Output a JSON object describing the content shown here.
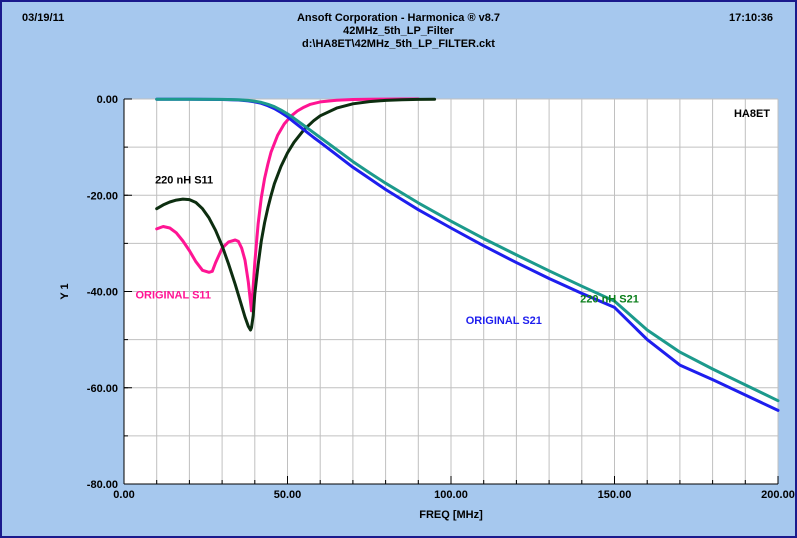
{
  "header": {
    "date": "03/19/11",
    "time": "17:10:36",
    "title_lines": [
      "Ansoft Corporation - Harmonica ® v8.7",
      "42MHz_5th_LP_Filter",
      "d:\\HA8ET\\42MHz_5th_LP_FILTER.ckt"
    ]
  },
  "colors": {
    "background": "#a6c8ee",
    "plot_area": "#ffffff",
    "grid": "#c0c0c0",
    "frame": "#1a1a8c"
  },
  "chart_data": {
    "type": "line",
    "xlabel": "FREQ [MHz]",
    "ylabel": "Y 1",
    "xlim": [
      0,
      200
    ],
    "ylim": [
      -80,
      0
    ],
    "xticks": [
      0,
      50,
      100,
      150,
      200
    ],
    "xtick_labels": [
      "0.00",
      "50.00",
      "100.00",
      "150.00",
      "200.00"
    ],
    "yticks": [
      0,
      -20,
      -40,
      -60,
      -80
    ],
    "ytick_labels": [
      "0.00",
      "-20.00",
      "-40.00",
      "-60.00",
      "-80.00"
    ],
    "grid": true,
    "plot_tag": "HA8ET",
    "series": [
      {
        "name": "ORIGINAL S11",
        "color": "#ff1493",
        "label_color": "#ff1493",
        "label_anchor": [
          3.5,
          -41.5
        ],
        "x": [
          10,
          12,
          14,
          16,
          18,
          20,
          22,
          24,
          26,
          27,
          28,
          30,
          32,
          34,
          35,
          36,
          37,
          38,
          39,
          40,
          41,
          42,
          43,
          44,
          45,
          47,
          49,
          51,
          53,
          55,
          57,
          60,
          65,
          70,
          75,
          80,
          85,
          90
        ],
        "y": [
          -27,
          -26.5,
          -26.8,
          -27.8,
          -29.5,
          -31.5,
          -33.8,
          -35.6,
          -36,
          -35.8,
          -34,
          -31,
          -29.7,
          -29.3,
          -29.6,
          -31,
          -33.5,
          -38,
          -44,
          -34,
          -26,
          -20.5,
          -16.5,
          -13.5,
          -11,
          -7.5,
          -5.2,
          -3.6,
          -2.5,
          -1.7,
          -1.1,
          -0.6,
          -0.25,
          -0.1,
          -0.05,
          -0.02,
          -0.01,
          0
        ]
      },
      {
        "name": "220 nH S11",
        "color": "#0d2e10",
        "label_color": "#000000",
        "label_anchor": [
          9.5,
          -17.6
        ],
        "x": [
          10,
          12,
          14,
          16,
          18,
          20,
          22,
          24,
          26,
          28,
          30,
          32,
          34,
          36,
          37,
          38,
          38.7,
          39,
          39.5,
          40,
          41,
          42,
          43,
          44,
          45,
          46,
          48,
          50,
          52,
          55,
          58,
          60,
          65,
          70,
          75,
          80,
          85,
          90,
          95
        ],
        "y": [
          -22.8,
          -22,
          -21.4,
          -21,
          -20.8,
          -20.9,
          -21.5,
          -22.8,
          -24.7,
          -27.3,
          -30.5,
          -34.3,
          -38.5,
          -43,
          -45.3,
          -47.2,
          -48,
          -47.5,
          -45,
          -40.5,
          -34.5,
          -29.5,
          -25.7,
          -22.6,
          -20,
          -17.6,
          -14,
          -11.2,
          -9,
          -6.4,
          -4.5,
          -3.5,
          -1.9,
          -1,
          -0.55,
          -0.3,
          -0.15,
          -0.08,
          -0.04
        ]
      },
      {
        "name": "ORIGINAL S21",
        "color": "#1e1eee",
        "label_color": "#1e1eee",
        "label_anchor": [
          104.5,
          -46.8
        ],
        "x": [
          10,
          20,
          30,
          35,
          38,
          40,
          42,
          44,
          46,
          48,
          50,
          52,
          55,
          58,
          60,
          65,
          70,
          75,
          80,
          90,
          100,
          110,
          120,
          130,
          140,
          150,
          160,
          170,
          180,
          190,
          200
        ],
        "y": [
          -0.05,
          -0.05,
          -0.1,
          -0.2,
          -0.4,
          -0.6,
          -0.9,
          -1.4,
          -2,
          -2.8,
          -3.7,
          -4.8,
          -6.4,
          -8,
          -9,
          -11.6,
          -14.2,
          -16.5,
          -18.8,
          -23,
          -26.8,
          -30.5,
          -34,
          -37.3,
          -40.4,
          -43.3,
          -50,
          -55.3,
          -58.3,
          -61.5,
          -64.7
        ]
      },
      {
        "name": "220 nH S21",
        "color": "#1c9a8c",
        "label_color": "#0a7e1a",
        "label_anchor": [
          139.5,
          -42.3
        ],
        "x": [
          10,
          20,
          30,
          35,
          38,
          40,
          42,
          44,
          46,
          48,
          50,
          52,
          55,
          58,
          60,
          65,
          70,
          75,
          80,
          90,
          100,
          110,
          120,
          130,
          140,
          150,
          160,
          170,
          180,
          190,
          200
        ],
        "y": [
          -0.05,
          -0.05,
          -0.08,
          -0.15,
          -0.3,
          -0.45,
          -0.7,
          -1.1,
          -1.6,
          -2.3,
          -3.1,
          -4,
          -5.5,
          -7,
          -8,
          -10.5,
          -13,
          -15.3,
          -17.5,
          -21.6,
          -25.4,
          -29,
          -32.4,
          -35.7,
          -38.9,
          -42,
          -48,
          -52.6,
          -56.1,
          -59.4,
          -62.7
        ]
      }
    ]
  }
}
